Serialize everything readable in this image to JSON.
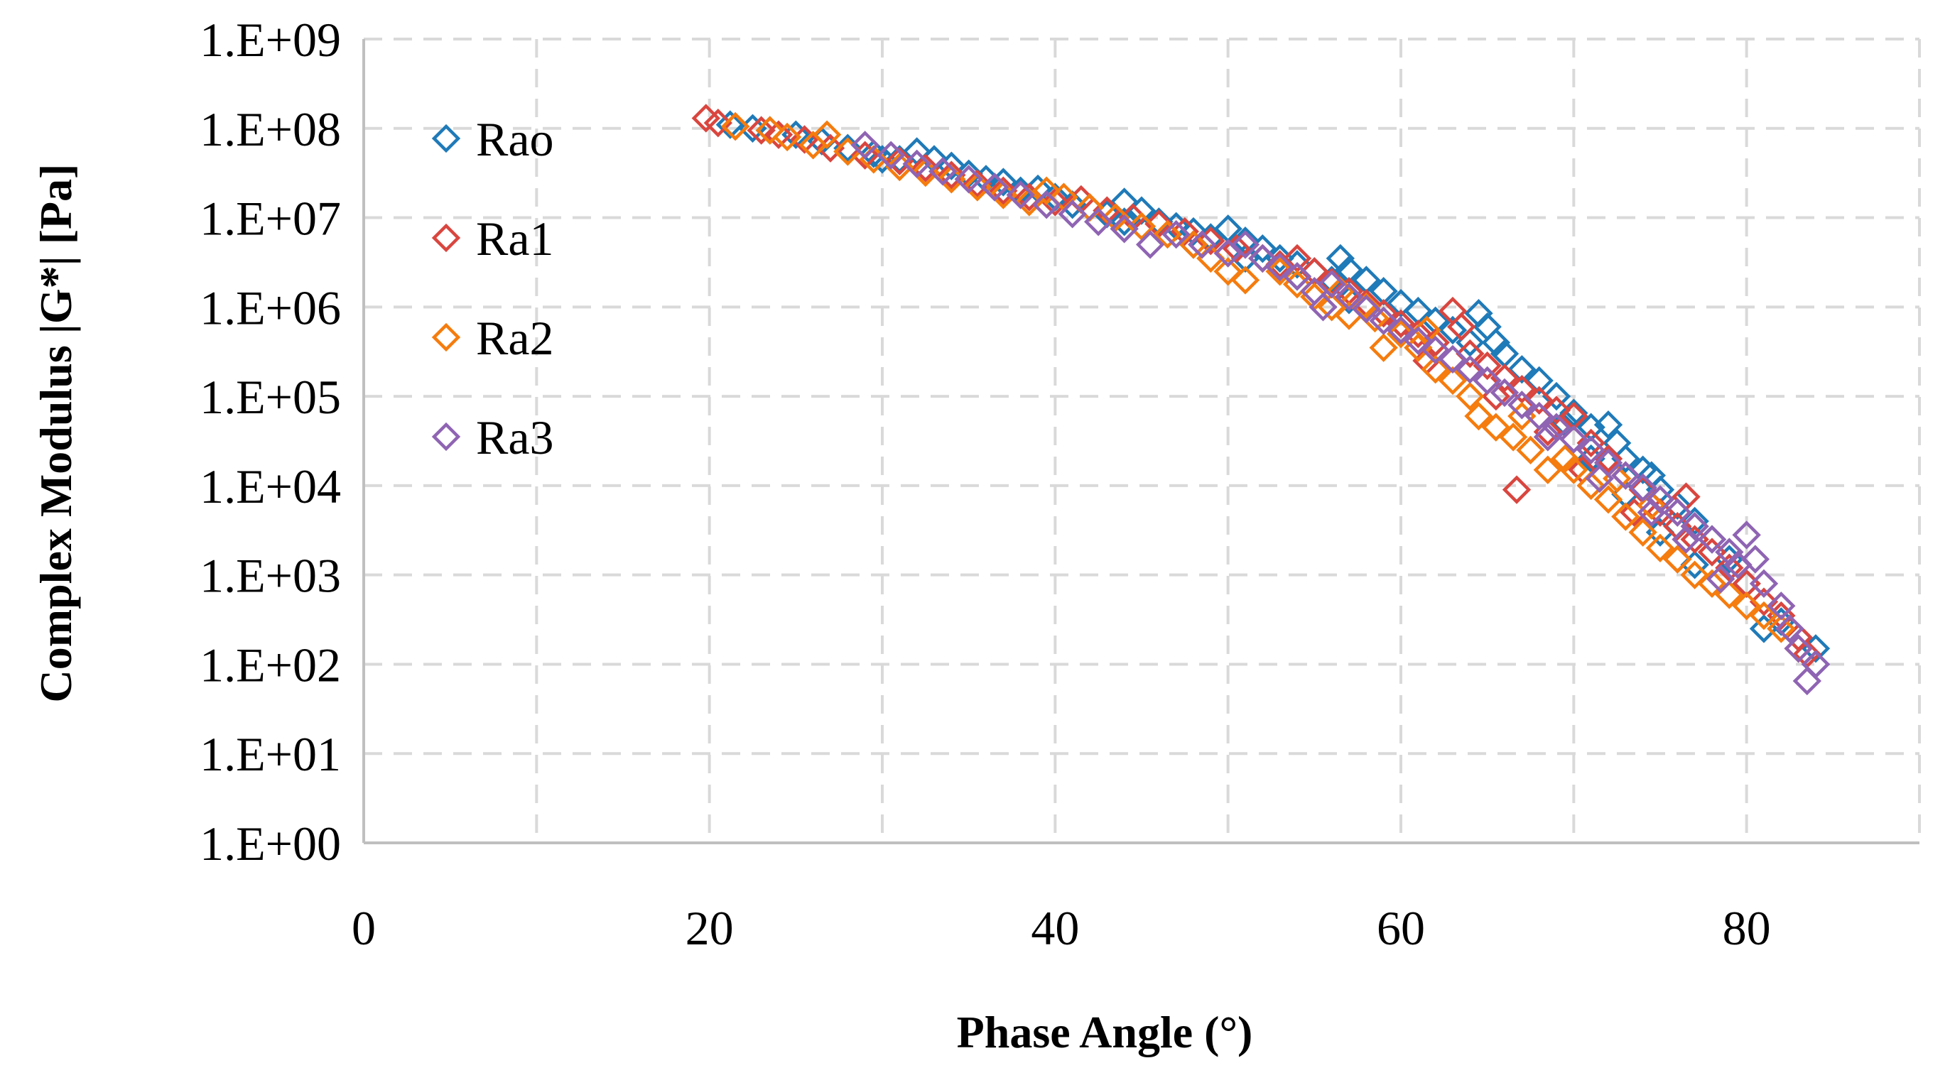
{
  "chart_data": {
    "type": "scatter",
    "title": "",
    "xlabel": "Phase Angle (°)",
    "ylabel": "Complex Modulus |G*| [Pa]",
    "xlim": [
      0,
      90
    ],
    "ylim_log10": [
      0,
      9
    ],
    "x_ticks": [
      0,
      20,
      40,
      60,
      80
    ],
    "x_tick_labels": [
      "0",
      "20",
      "40",
      "60",
      "80"
    ],
    "y_tick_labels": [
      "1.E+00",
      "1.E+01",
      "1.E+02",
      "1.E+03",
      "1.E+04",
      "1.E+05",
      "1.E+06",
      "1.E+07",
      "1.E+08",
      "1.E+09"
    ],
    "grid": true,
    "legend_position": "top-left",
    "marker": "open-diamond",
    "series": [
      {
        "name": "Rao",
        "color": "#1f7ab8",
        "points": [
          [
            21.2,
            110000000.0
          ],
          [
            22.5,
            100000000.0
          ],
          [
            23.5,
            95000000.0
          ],
          [
            25.0,
            85000000.0
          ],
          [
            26.5,
            72000000.0
          ],
          [
            28.0,
            60000000.0
          ],
          [
            29.5,
            52000000.0
          ],
          [
            31.0,
            45000000.0
          ],
          [
            32.0,
            55000000.0
          ],
          [
            33.0,
            45000000.0
          ],
          [
            34.0,
            38000000.0
          ],
          [
            35.0,
            31000000.0
          ],
          [
            36.0,
            27000000.0
          ],
          [
            37.0,
            25000000.0
          ],
          [
            38.0,
            20000000.0
          ],
          [
            39.0,
            21000000.0
          ],
          [
            40.0,
            17000000.0
          ],
          [
            41.0,
            14000000.0
          ],
          [
            42.0,
            13000000.0
          ],
          [
            43.0,
            11000000.0
          ],
          [
            44.0,
            15000000.0
          ],
          [
            45.0,
            12000000.0
          ],
          [
            46.0,
            9000000.0
          ],
          [
            47.0,
            8000000.0
          ],
          [
            48.0,
            7000000.0
          ],
          [
            49.0,
            6000000.0
          ],
          [
            50.0,
            7500000.0
          ],
          [
            51.0,
            5500000.0
          ],
          [
            52.0,
            4500000.0
          ],
          [
            53.0,
            3500000.0
          ],
          [
            54.0,
            3000000.0
          ],
          [
            55.0,
            2500000.0
          ],
          [
            56.0,
            2000000.0
          ],
          [
            56.5,
            3500000.0
          ],
          [
            57.0,
            2600000.0
          ],
          [
            58.0,
            2000000.0
          ],
          [
            59.0,
            1500000.0
          ],
          [
            60.0,
            1100000.0
          ],
          [
            61.0,
            900000.0
          ],
          [
            62.0,
            700000.0
          ],
          [
            63.0,
            550000.0
          ],
          [
            64.0,
            400000.0
          ],
          [
            64.5,
            850000.0
          ],
          [
            65.0,
            600000.0
          ],
          [
            65.5,
            400000.0
          ],
          [
            66.0,
            300000.0
          ],
          [
            67.0,
            200000.0
          ],
          [
            68.0,
            150000.0
          ],
          [
            69.0,
            100000.0
          ],
          [
            70.0,
            65000.0
          ],
          [
            71.0,
            45000.0
          ],
          [
            72.0,
            48000.0
          ],
          [
            72.5,
            30000.0
          ],
          [
            73.0,
            20000.0
          ],
          [
            74.0,
            15000.0
          ],
          [
            74.5,
            13000.0
          ],
          [
            75.0,
            9000.0
          ],
          [
            76.0,
            6000.0
          ],
          [
            77.0,
            4000.0
          ],
          [
            78.0,
            2500.0
          ],
          [
            79.0,
            1500.0
          ],
          [
            80.0,
            800.0
          ],
          [
            81.0,
            250.0
          ],
          [
            82.0,
            300.0
          ],
          [
            83.0,
            200.0
          ],
          [
            84.0,
            150.0
          ],
          [
            84.0,
            100.0
          ],
          [
            77.0,
            1300.0
          ],
          [
            75.0,
            3000.0
          ],
          [
            73.0,
            8000.0
          ],
          [
            71.0,
            20000.0
          ],
          [
            69.5,
            50000.0
          ],
          [
            62.0,
            400000.0
          ],
          [
            60.0,
            650000.0
          ],
          [
            57.0,
            1200000.0
          ],
          [
            54.0,
            2200000.0
          ],
          [
            51.0,
            3500000.0
          ],
          [
            48.0,
            5000000.0
          ],
          [
            44.0,
            9000000.0
          ],
          [
            36.5,
            22000000.0
          ],
          [
            30.0,
            45000000.0
          ]
        ]
      },
      {
        "name": "Ra1",
        "color": "#d9463f",
        "points": [
          [
            19.8,
            130000000.0
          ],
          [
            20.5,
            115000000.0
          ],
          [
            21.5,
            105000000.0
          ],
          [
            23.0,
            95000000.0
          ],
          [
            24.0,
            85000000.0
          ],
          [
            25.5,
            75000000.0
          ],
          [
            27.0,
            60000000.0
          ],
          [
            29.0,
            50000000.0
          ],
          [
            31.0,
            43000000.0
          ],
          [
            32.5,
            36000000.0
          ],
          [
            34.0,
            30000000.0
          ],
          [
            35.5,
            24000000.0
          ],
          [
            37.0,
            20000000.0
          ],
          [
            38.5,
            17000000.0
          ],
          [
            40.0,
            15000000.0
          ],
          [
            41.5,
            16000000.0
          ],
          [
            43.0,
            12000000.0
          ],
          [
            44.5,
            10000000.0
          ],
          [
            46.0,
            8500000.0
          ],
          [
            47.5,
            7000000.0
          ],
          [
            49.0,
            5500000.0
          ],
          [
            50.5,
            4500000.0
          ],
          [
            52.0,
            3500000.0
          ],
          [
            53.0,
            3000000.0
          ],
          [
            54.0,
            3500000.0
          ],
          [
            55.0,
            2500000.0
          ],
          [
            56.0,
            1900000.0
          ],
          [
            57.0,
            1500000.0
          ],
          [
            58.0,
            1100000.0
          ],
          [
            59.0,
            850000.0
          ],
          [
            60.0,
            650000.0
          ],
          [
            61.0,
            500000.0
          ],
          [
            62.0,
            400000.0
          ],
          [
            63.0,
            900000.0
          ],
          [
            63.5,
            600000.0
          ],
          [
            64.0,
            300000.0
          ],
          [
            65.0,
            220000.0
          ],
          [
            66.0,
            160000.0
          ],
          [
            66.7,
            9000.0
          ],
          [
            67.0,
            120000.0
          ],
          [
            68.0,
            90000.0
          ],
          [
            69.0,
            70000.0
          ],
          [
            70.0,
            60000.0
          ],
          [
            71.0,
            30000.0
          ],
          [
            72.0,
            20000.0
          ],
          [
            73.0,
            13000.0
          ],
          [
            74.0,
            9000.0
          ],
          [
            75.0,
            5000.0
          ],
          [
            76.0,
            3500.0
          ],
          [
            76.5,
            7500.0
          ],
          [
            77.0,
            2500.0
          ],
          [
            78.0,
            1800.0
          ],
          [
            79.0,
            1200.0
          ],
          [
            80.0,
            800.0
          ],
          [
            81.0,
            500.0
          ],
          [
            82.0,
            350.0
          ],
          [
            83.0,
            200.0
          ],
          [
            83.5,
            130.0
          ],
          [
            76.0,
            1500.0
          ],
          [
            73.5,
            5000.0
          ],
          [
            70.5,
            15000.0
          ],
          [
            68.5,
            40000.0
          ],
          [
            65.5,
            100000.0
          ],
          [
            61.5,
            250000.0
          ]
        ]
      },
      {
        "name": "Ra2",
        "color": "#f57c0e",
        "points": [
          [
            21.5,
            105000000.0
          ],
          [
            23.5,
            95000000.0
          ],
          [
            24.5,
            80000000.0
          ],
          [
            26.0,
            65000000.0
          ],
          [
            26.8,
            85000000.0
          ],
          [
            28.0,
            55000000.0
          ],
          [
            29.5,
            45000000.0
          ],
          [
            31.0,
            37000000.0
          ],
          [
            32.5,
            32000000.0
          ],
          [
            34.0,
            27000000.0
          ],
          [
            35.5,
            22000000.0
          ],
          [
            37.0,
            18000000.0
          ],
          [
            38.5,
            15000000.0
          ],
          [
            39.5,
            20000000.0
          ],
          [
            40.5,
            17000000.0
          ],
          [
            42.0,
            13000000.0
          ],
          [
            43.5,
            10000000.0
          ],
          [
            45.0,
            8000000.0
          ],
          [
            46.5,
            6500000.0
          ],
          [
            48.0,
            5000000.0
          ],
          [
            49.0,
            3500000.0
          ],
          [
            50.0,
            2500000.0
          ],
          [
            51.0,
            2000000.0
          ],
          [
            52.0,
            3500000.0
          ],
          [
            53.0,
            2500000.0
          ],
          [
            54.0,
            1800000.0
          ],
          [
            55.0,
            1300000.0
          ],
          [
            56.0,
            1000000.0
          ],
          [
            57.0,
            800000.0
          ],
          [
            58.0,
            1000000.0
          ],
          [
            58.5,
            750000.0
          ],
          [
            59.0,
            350000.0
          ],
          [
            60.0,
            500000.0
          ],
          [
            61.0,
            350000.0
          ],
          [
            62.0,
            200000.0
          ],
          [
            63.0,
            150000.0
          ],
          [
            64.0,
            100000.0
          ],
          [
            64.5,
            60000.0
          ],
          [
            65.5,
            45000.0
          ],
          [
            66.5,
            35000.0
          ],
          [
            67.5,
            25000.0
          ],
          [
            68.5,
            15000.0
          ],
          [
            69.5,
            20000.0
          ],
          [
            70.0,
            15000.0
          ],
          [
            71.0,
            10000.0
          ],
          [
            72.0,
            7000.0
          ],
          [
            73.0,
            4500.0
          ],
          [
            74.0,
            3000.0
          ],
          [
            75.0,
            2000.0
          ],
          [
            76.0,
            1500.0
          ],
          [
            77.0,
            1000.0
          ],
          [
            78.0,
            800.0
          ],
          [
            79.0,
            600.0
          ],
          [
            80.0,
            450.0
          ],
          [
            81.0,
            350.0
          ],
          [
            82.0,
            250.0
          ],
          [
            83.0,
            150.0
          ],
          [
            74.5,
            6000.0
          ],
          [
            72.5,
            12000.0
          ],
          [
            67.0,
            60000.0
          ],
          [
            61.5,
            550000.0
          ],
          [
            56.5,
            1500000.0
          ]
        ]
      },
      {
        "name": "Ra3",
        "color": "#8f64b3",
        "points": [
          [
            29.0,
            65000000.0
          ],
          [
            30.5,
            50000000.0
          ],
          [
            32.0,
            40000000.0
          ],
          [
            33.5,
            33000000.0
          ],
          [
            35.0,
            27000000.0
          ],
          [
            36.5,
            22000000.0
          ],
          [
            38.0,
            18000000.0
          ],
          [
            39.5,
            14000000.0
          ],
          [
            41.0,
            11000000.0
          ],
          [
            42.5,
            9000000.0
          ],
          [
            44.0,
            7500000.0
          ],
          [
            45.5,
            5000000.0
          ],
          [
            47.0,
            6500000.0
          ],
          [
            48.5,
            5000000.0
          ],
          [
            50.0,
            4000000.0
          ],
          [
            51.0,
            5000000.0
          ],
          [
            52.0,
            3500000.0
          ],
          [
            53.0,
            2800000.0
          ],
          [
            54.0,
            2200000.0
          ],
          [
            55.0,
            1500000.0
          ],
          [
            55.5,
            1000000.0
          ],
          [
            56.0,
            1800000.0
          ],
          [
            57.0,
            1300000.0
          ],
          [
            58.0,
            950000.0
          ],
          [
            59.0,
            700000.0
          ],
          [
            60.0,
            550000.0
          ],
          [
            61.0,
            420000.0
          ],
          [
            62.0,
            330000.0
          ],
          [
            63.0,
            260000.0
          ],
          [
            64.0,
            200000.0
          ],
          [
            65.0,
            150000.0
          ],
          [
            66.0,
            110000.0
          ],
          [
            67.0,
            80000.0
          ],
          [
            68.0,
            60000.0
          ],
          [
            69.0,
            45000.0
          ],
          [
            70.0,
            33000.0
          ],
          [
            71.0,
            25000.0
          ],
          [
            72.0,
            18000.0
          ],
          [
            73.0,
            13000.0
          ],
          [
            74.0,
            9500.0
          ],
          [
            75.0,
            7000.0
          ],
          [
            76.0,
            5000.0
          ],
          [
            77.0,
            3500.0
          ],
          [
            78.0,
            2500.0
          ],
          [
            79.0,
            1800.0
          ],
          [
            79.5,
            1300.0
          ],
          [
            80.0,
            2800.0
          ],
          [
            80.5,
            1500.0
          ],
          [
            81.0,
            800.0
          ],
          [
            82.0,
            450.0
          ],
          [
            82.5,
            250.0
          ],
          [
            83.0,
            150.0
          ],
          [
            83.5,
            65.0
          ],
          [
            84.0,
            100.0
          ],
          [
            78.5,
            900.0
          ],
          [
            76.5,
            2500.0
          ],
          [
            74.5,
            5000.0
          ],
          [
            71.5,
            12000.0
          ],
          [
            68.5,
            35000.0
          ]
        ]
      }
    ]
  }
}
